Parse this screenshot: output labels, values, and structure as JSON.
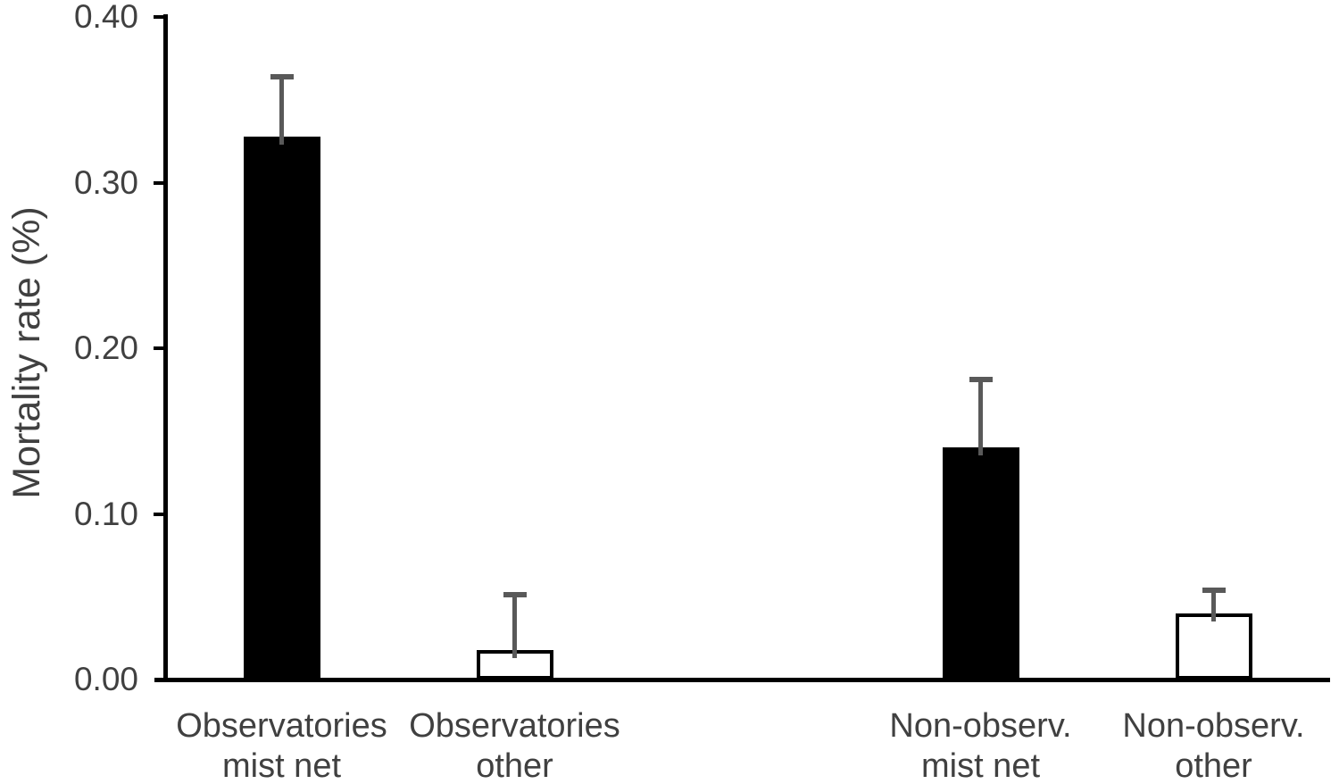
{
  "chart_data": {
    "type": "bar",
    "title": "",
    "xlabel": "",
    "ylabel": "Mortality rate (%)",
    "ylim": [
      0.0,
      0.4
    ],
    "grid": false,
    "legend": "none",
    "yticks": [
      {
        "value": 0.4,
        "label": "0.40"
      },
      {
        "value": 0.3,
        "label": "0.30"
      },
      {
        "value": 0.2,
        "label": "0.20"
      },
      {
        "value": 0.1,
        "label": "0.10"
      },
      {
        "value": 0.0,
        "label": "0.00"
      }
    ],
    "categories": [
      "Observatories mist net",
      "Observatories other",
      "Non-observ. mist net",
      "Non-observ. other"
    ],
    "bars": [
      {
        "category_line1": "Observatories",
        "category_line2": "mist net",
        "value": 0.328,
        "error_upper": 0.036,
        "fill": "black",
        "slot": 0
      },
      {
        "category_line1": "Observatories",
        "category_line2": "other",
        "value": 0.018,
        "error_upper": 0.033,
        "fill": "white",
        "slot": 1
      },
      {
        "category_line1": "Non-observ.",
        "category_line2": "mist net",
        "value": 0.14,
        "error_upper": 0.041,
        "fill": "black",
        "slot": 3
      },
      {
        "category_line1": "Non-observ.",
        "category_line2": "other",
        "value": 0.04,
        "error_upper": 0.014,
        "fill": "white",
        "slot": 4
      }
    ],
    "layout_hints": {
      "slots": 5,
      "empty_middle_slot": 2,
      "error_bars": "upper only"
    },
    "colors": {
      "axis": "#000000",
      "text": "#404040",
      "error_bar": "#595959",
      "bar_fill_dark": "#000000",
      "bar_fill_light": "#ffffff",
      "bar_border": "#000000",
      "background": "#ffffff"
    }
  }
}
